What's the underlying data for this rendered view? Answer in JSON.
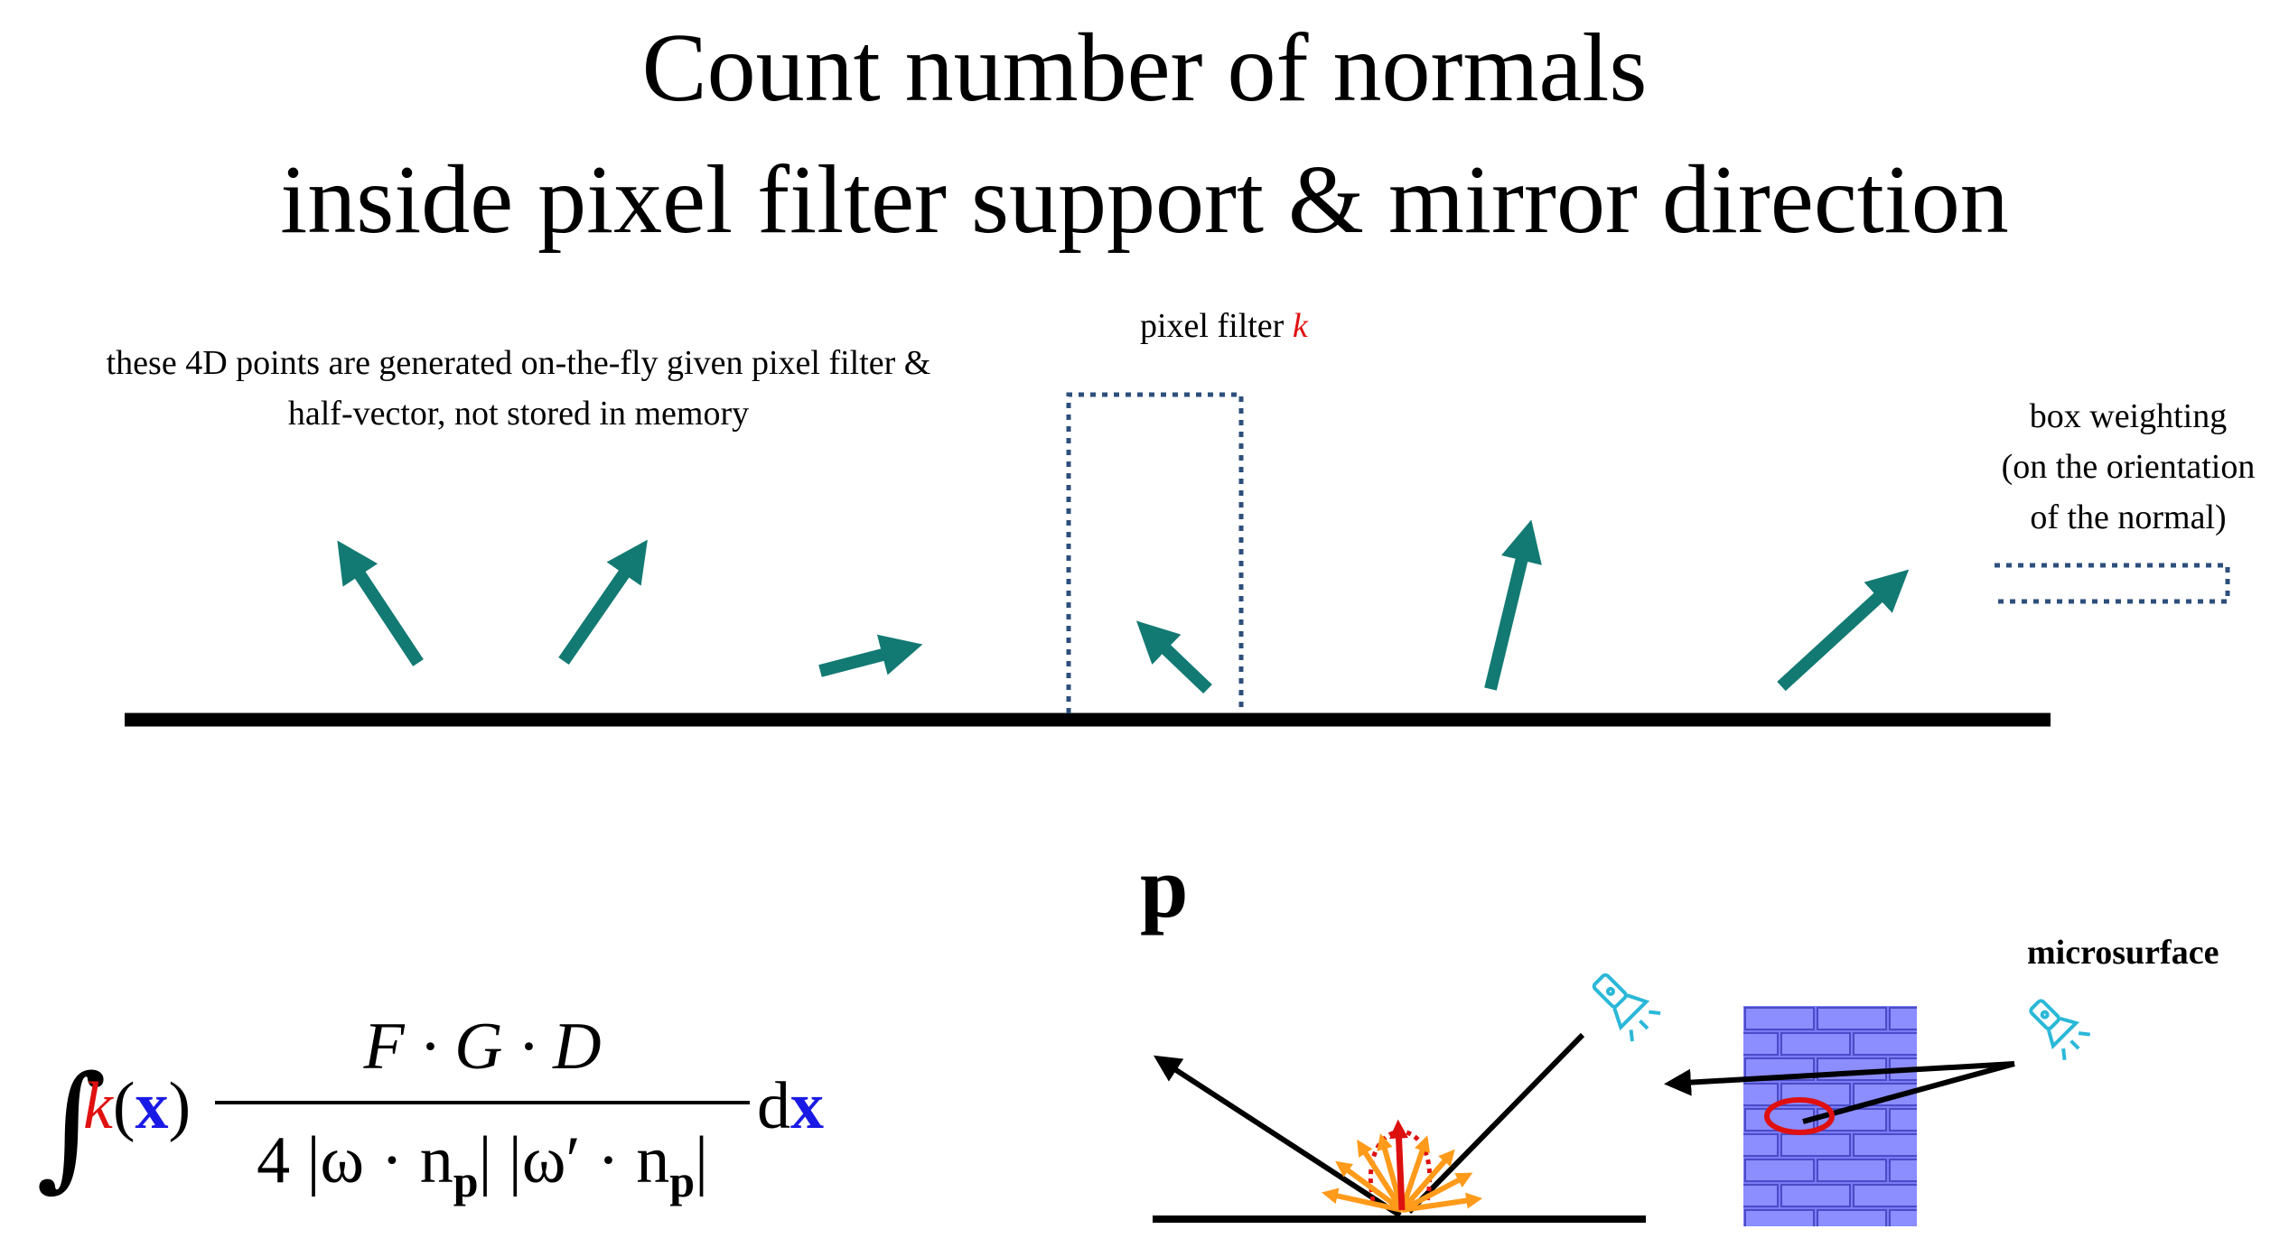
{
  "title": {
    "line1": "Count number of normals",
    "line2": "inside pixel filter support & mirror direction"
  },
  "notes": {
    "points_line1": "these 4D points are generated on-the-fly given pixel filter &",
    "points_line2": "half-vector, not stored in memory",
    "pixel_filter": "pixel filter",
    "pixel_filter_symbol": "k",
    "box_line1": "box weighting",
    "box_line2": "(on the orientation",
    "box_line3": "of the normal)"
  },
  "formula": {
    "kernel": "k",
    "x_symbol": "x",
    "numerator": "F · G · D",
    "denominator": "4 |ω · n",
    "denominator_sub": "p",
    "denominator_mid": "| |ω′ · n",
    "denominator_sub2": "p",
    "denominator_end": "|",
    "differential": "d"
  },
  "labels": {
    "p": "p",
    "microsurface": "microsurface"
  },
  "colors": {
    "normal_arrow": "#137a73",
    "filter_box": "#2d4f7c",
    "kernel": "#e01010",
    "x_bold": "#1a1ae6",
    "lobe_orange": "#ff9a1a",
    "lobe_red": "#dd1010",
    "flashlight": "#2bb8d8",
    "brick": "#7b7cf2"
  }
}
